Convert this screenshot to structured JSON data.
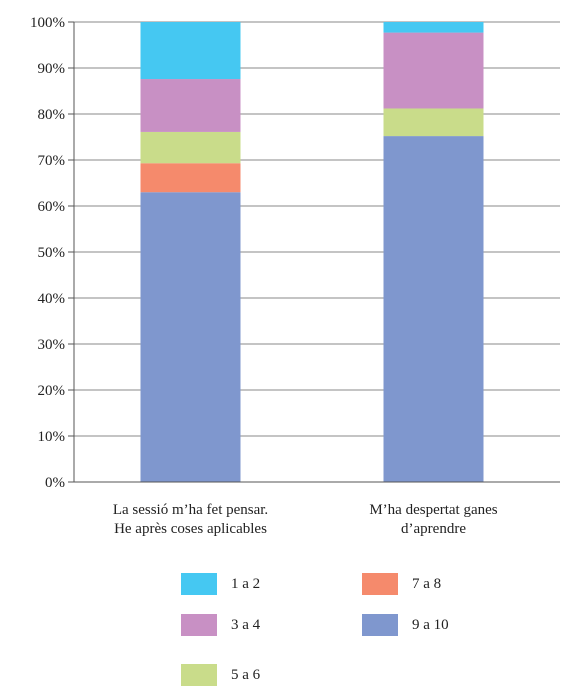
{
  "chart_data": {
    "type": "bar",
    "stacked": true,
    "percent": true,
    "categories": [
      [
        "La sessió m’ha fet pensar.",
        "He après coses aplicables"
      ],
      [
        "M’ha despertat ganes",
        "d’aprendre"
      ]
    ],
    "ylim": [
      0,
      100
    ],
    "yticks": [
      "0%",
      "10%",
      "20%",
      "30%",
      "40%",
      "50%",
      "60%",
      "70%",
      "80%",
      "90%",
      "100%"
    ],
    "grid": true,
    "legend_position": "bottom",
    "series": [
      {
        "name": "9 a 10",
        "color": "#7F97CE",
        "values": [
          63,
          75.2
        ]
      },
      {
        "name": "7 a 8",
        "color": "#F58A6C",
        "values": [
          6.3,
          0
        ]
      },
      {
        "name": "5 a 6",
        "color": "#C9DC8A",
        "values": [
          6.8,
          6.0
        ]
      },
      {
        "name": "3 a 4",
        "color": "#C890C4",
        "values": [
          11.5,
          16.5
        ]
      },
      {
        "name": "1 a 2",
        "color": "#45C8F2",
        "values": [
          12.4,
          2.3
        ]
      }
    ],
    "legend_order": [
      "1 a 2",
      "7 a 8",
      "3 a 4",
      "9 a 10",
      "5 a 6"
    ]
  }
}
